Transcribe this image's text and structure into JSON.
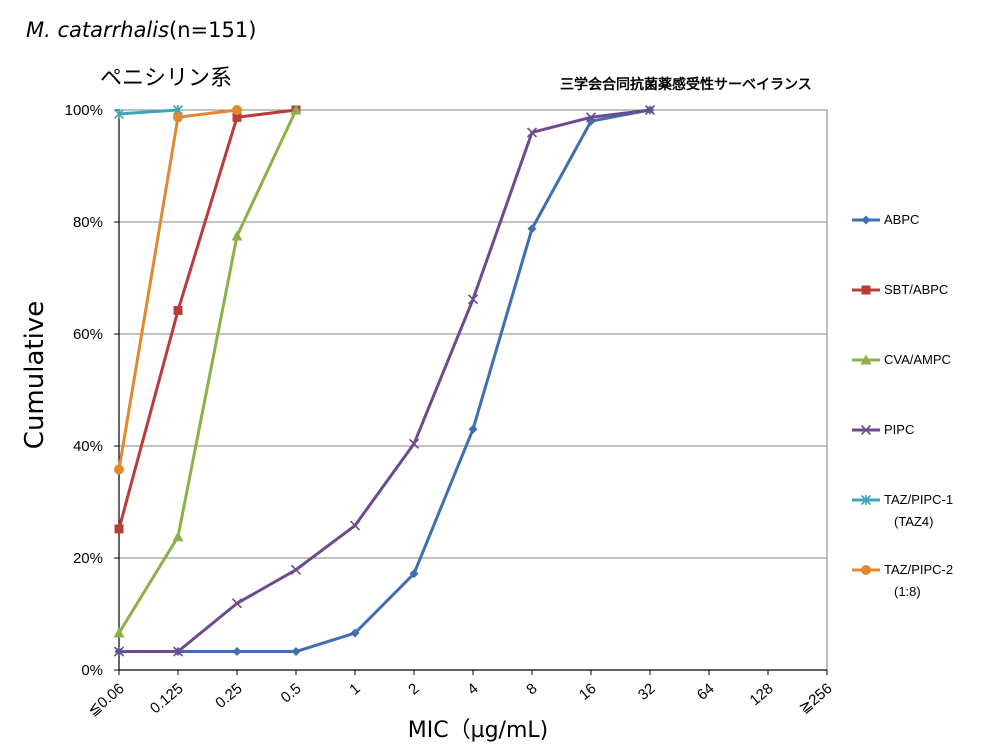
{
  "header": {
    "organism_name": "M. catarrhalis",
    "organism_n": "(n=151)",
    "subtitle": "ペニシリン系",
    "survey_name": "三学会合同抗菌薬感受性サーベイランス"
  },
  "chart_data": {
    "type": "line",
    "xlabel": "MIC（µg/mL)",
    "ylabel": "Cumulative",
    "categories": [
      "≦0.06",
      "0.125",
      "0.25",
      "0.5",
      "1",
      "2",
      "4",
      "8",
      "16",
      "32",
      "64",
      "128",
      "≧256"
    ],
    "y_ticks": [
      "0%",
      "20%",
      "40%",
      "60%",
      "80%",
      "100%"
    ],
    "ylim": [
      0,
      100
    ],
    "grid": "horizontal",
    "legend_position": "right",
    "series": [
      {
        "name": "ABPC",
        "color": "#3F6FB0",
        "marker": "diamond",
        "values": [
          3.3,
          3.3,
          3.3,
          3.3,
          6.6,
          17.2,
          43.0,
          78.8,
          98.0,
          100,
          null,
          null,
          null
        ]
      },
      {
        "name": "SBT/ABPC",
        "color": "#B83C3A",
        "marker": "square",
        "values": [
          25.2,
          64.2,
          98.7,
          100,
          null,
          null,
          null,
          null,
          null,
          null,
          null,
          null,
          null
        ]
      },
      {
        "name": "CVA/AMPC",
        "color": "#8DB04A",
        "marker": "triangle",
        "values": [
          6.6,
          23.8,
          77.5,
          100,
          null,
          null,
          null,
          null,
          null,
          null,
          null,
          null,
          null
        ]
      },
      {
        "name": "PIPC",
        "color": "#6E4A8E",
        "marker": "x",
        "values": [
          3.3,
          3.3,
          11.9,
          17.9,
          25.8,
          40.4,
          66.2,
          96.0,
          98.7,
          100,
          null,
          null,
          null
        ]
      },
      {
        "name": "TAZ/PIPC-1",
        "sub": "(TAZ4)",
        "color": "#3CA6B8",
        "marker": "star",
        "values": [
          99.3,
          100,
          null,
          null,
          null,
          null,
          null,
          null,
          null,
          null,
          null,
          null,
          null
        ]
      },
      {
        "name": "TAZ/PIPC-2",
        "sub": "(1:8)",
        "color": "#E0892F",
        "marker": "circle",
        "values": [
          35.8,
          98.7,
          100,
          null,
          null,
          null,
          null,
          null,
          null,
          null,
          null,
          null,
          null
        ]
      }
    ]
  }
}
